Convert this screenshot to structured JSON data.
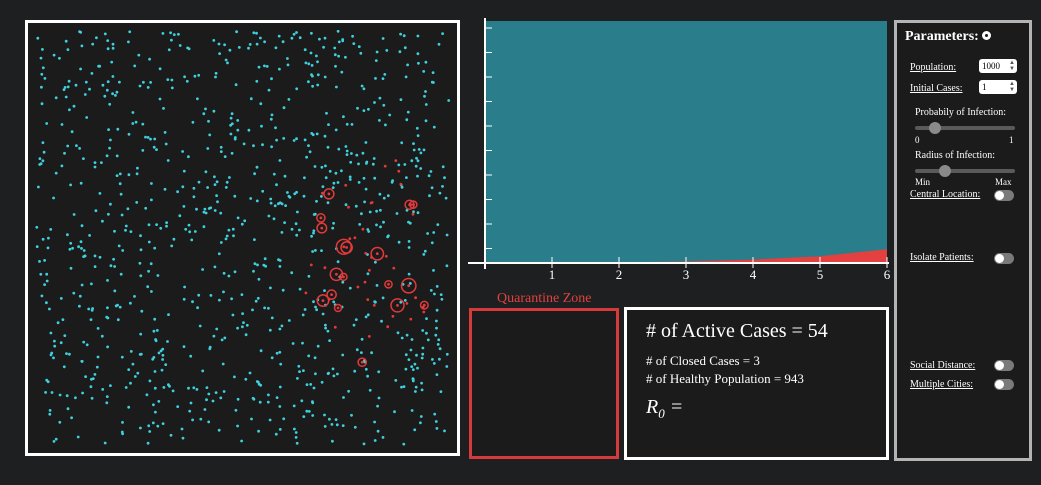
{
  "chart_data": {
    "type": "area",
    "x_ticks": [
      "1",
      "2",
      "3",
      "4",
      "5",
      "6"
    ],
    "xlim": [
      0,
      6
    ],
    "series": [
      {
        "color": "#2a7d8a",
        "x": [
          0,
          6
        ],
        "values": [
          1000,
          1000
        ]
      },
      {
        "color": "#e34040",
        "x": [
          0,
          1,
          2,
          3,
          4,
          5,
          6
        ],
        "values": [
          1,
          1,
          3,
          6,
          14,
          28,
          57
        ]
      }
    ],
    "ylim": [
      0,
      1000
    ]
  },
  "simulation": {
    "healthy_color": "#3fd0de",
    "infected_color": "#e23a3a"
  },
  "quarantine": {
    "label": "Quarantine Zone"
  },
  "stats": {
    "active_cases": "# of Active Cases = 54",
    "closed_cases": "# of Closed Cases = 3",
    "healthy_population": "# of Healthy Population = 943",
    "r0_prefix": "R",
    "r0_sub": "0",
    "r0_suffix": " ="
  },
  "parameters": {
    "title": "Parameters:",
    "population_label": "Population:",
    "population_value": "1000",
    "initial_cases_label": "Initial Cases:",
    "initial_cases_value": "1",
    "prob_label": "Probabily of Infection:",
    "prob_min": "0",
    "prob_max": "1",
    "prob_value": 0.2,
    "radius_label": "Radius of Infection:",
    "radius_min": "Min",
    "radius_max": "Max",
    "radius_value": 0.3,
    "central_location_label": "Central Location:",
    "central_location_on": false,
    "isolate_label": "Isolate Patients:",
    "isolate_on": false,
    "social_distance_label": "Social Distance:",
    "social_distance_on": false,
    "multiple_cities_label": "Multiple Cities:",
    "multiple_cities_on": false
  }
}
